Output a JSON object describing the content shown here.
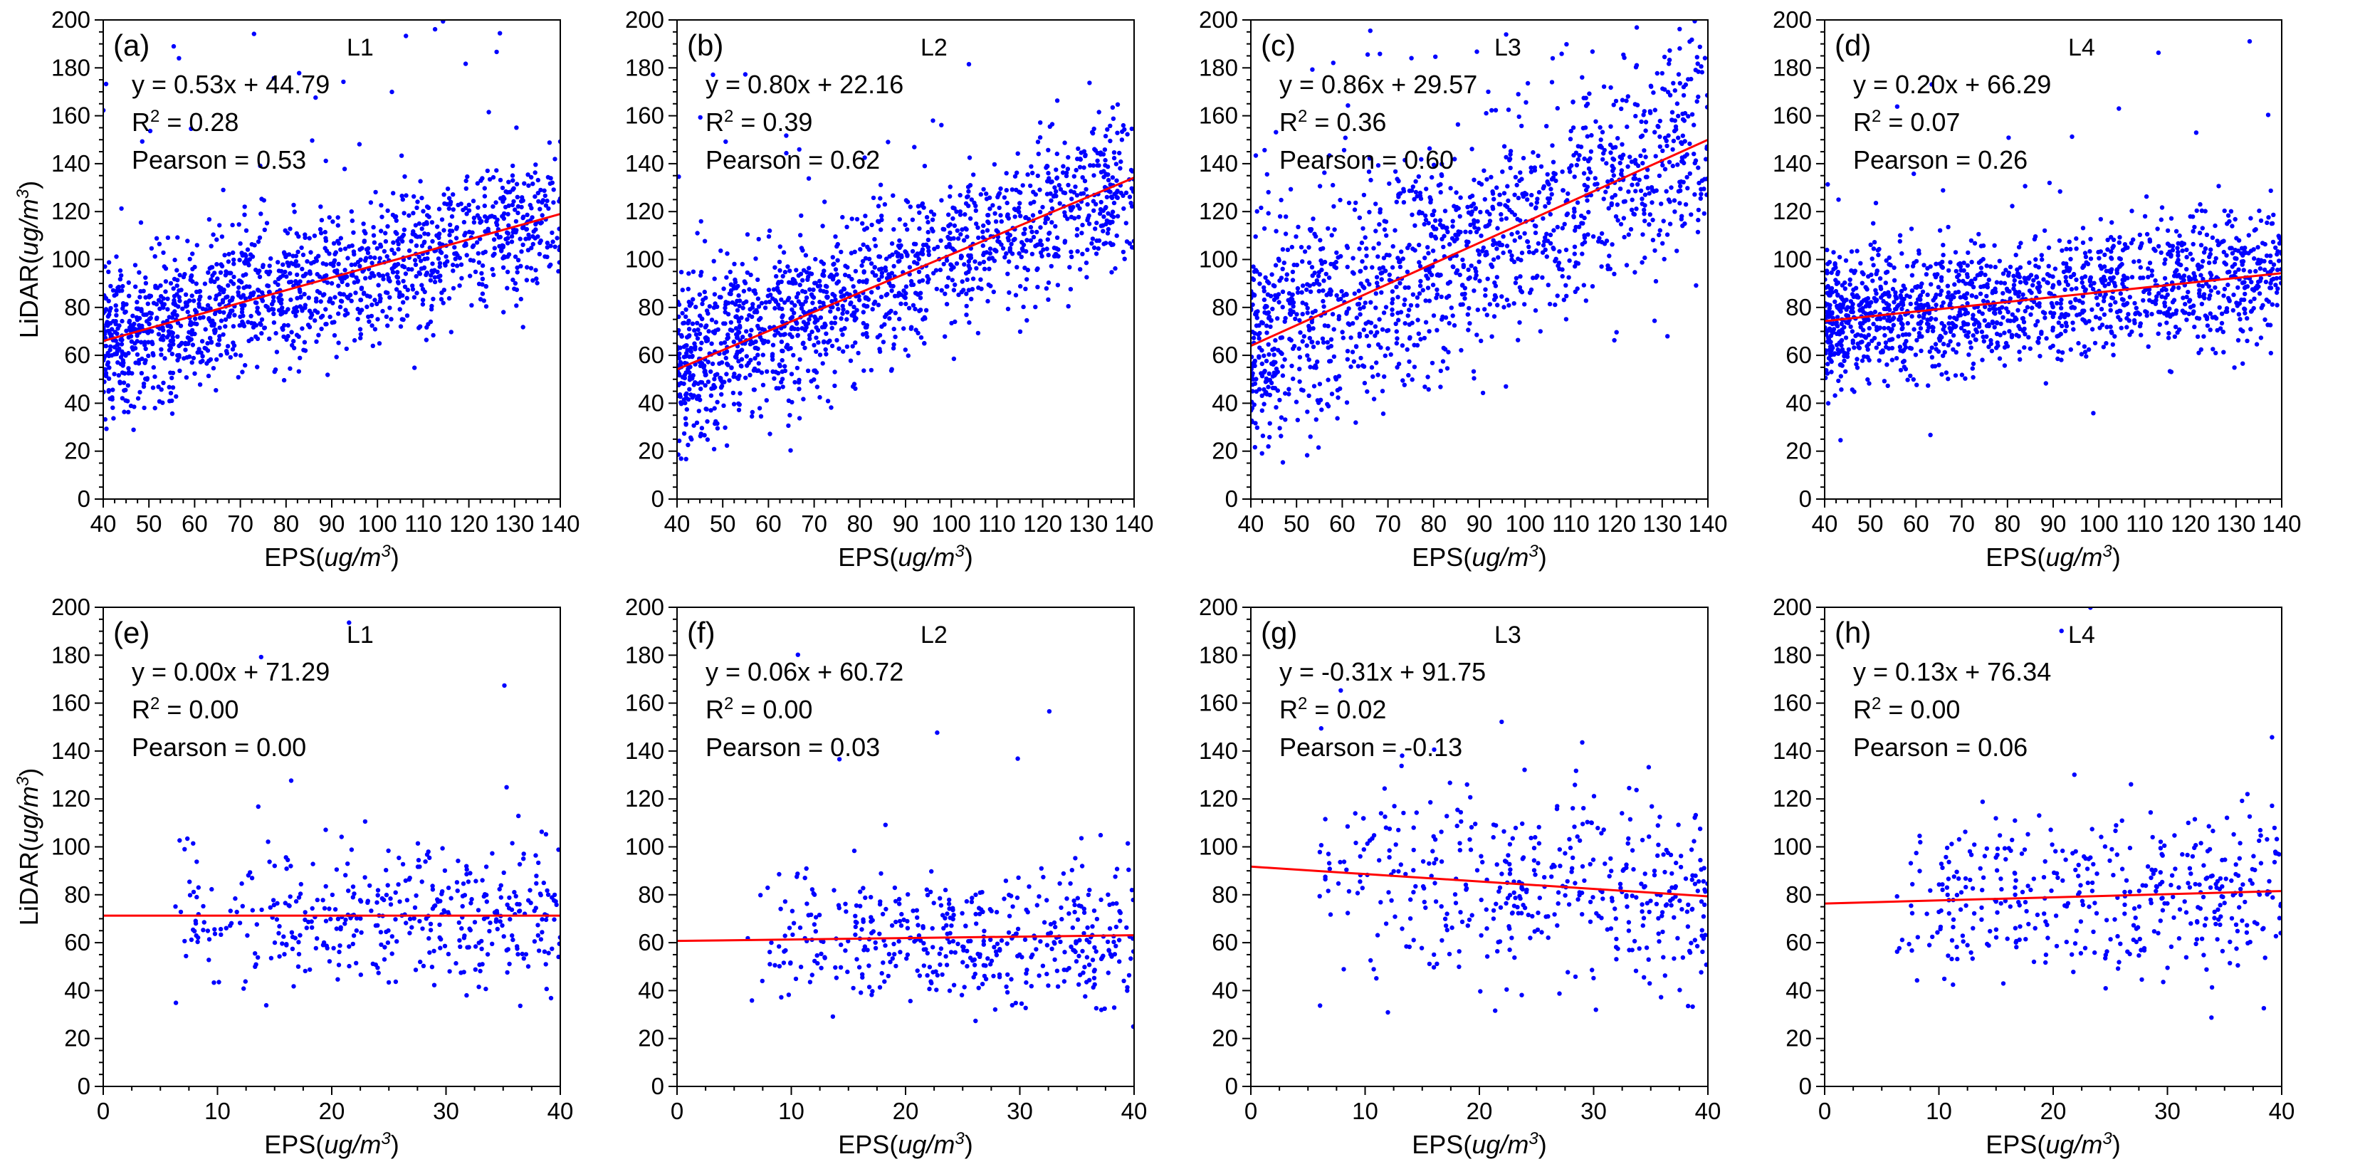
{
  "figure": {
    "background": "#ffffff",
    "point_color": "#0000ff",
    "line_color": "#ff0000"
  },
  "chart_data": [
    {
      "id": "a",
      "type": "scatter",
      "panel_label": "(a)",
      "layer": "L1",
      "equation": "y = 0.53x + 44.79",
      "r2_prefix": "R",
      "r2_value": " = 0.28",
      "pearson": "Pearson = 0.53",
      "xlabel_prefix": "EPS(",
      "xlabel_unit": "ug/m",
      "xlabel_suffix": ")",
      "ylabel_prefix": "LiDAR(",
      "ylabel_unit": "ug/m",
      "ylabel_suffix": ")",
      "xlim": [
        40,
        140
      ],
      "ylim": [
        0,
        200
      ],
      "xticks": [
        40,
        50,
        60,
        70,
        80,
        90,
        100,
        110,
        120,
        130,
        140
      ],
      "yticks": [
        0,
        20,
        40,
        60,
        80,
        100,
        120,
        140,
        160,
        180,
        200
      ],
      "fit": {
        "slope": 0.53,
        "intercept": 44.79
      },
      "scatter_spread": {
        "x_range": [
          40,
          140
        ],
        "n_points": 1500,
        "noise": 15
      }
    },
    {
      "id": "b",
      "type": "scatter",
      "panel_label": "(b)",
      "layer": "L2",
      "equation": "y = 0.80x + 22.16",
      "r2_prefix": "R",
      "r2_value": " = 0.39",
      "pearson": "Pearson = 0.62",
      "xlabel_prefix": "EPS(",
      "xlabel_unit": "ug/m",
      "xlabel_suffix": ")",
      "ylabel_prefix": "",
      "ylabel_unit": "",
      "ylabel_suffix": "",
      "xlim": [
        40,
        140
      ],
      "ylim": [
        0,
        200
      ],
      "xticks": [
        40,
        50,
        60,
        70,
        80,
        90,
        100,
        110,
        120,
        130,
        140
      ],
      "yticks": [
        0,
        20,
        40,
        60,
        80,
        100,
        120,
        140,
        160,
        180,
        200
      ],
      "fit": {
        "slope": 0.8,
        "intercept": 22.16
      },
      "scatter_spread": {
        "x_range": [
          40,
          140
        ],
        "n_points": 1500,
        "noise": 17
      }
    },
    {
      "id": "c",
      "type": "scatter",
      "panel_label": "(c)",
      "layer": "L3",
      "equation": "y = 0.86x + 29.57",
      "r2_prefix": "R",
      "r2_value": " = 0.36",
      "pearson": "Pearson = 0.60",
      "xlabel_prefix": "EPS(",
      "xlabel_unit": "ug/m",
      "xlabel_suffix": ")",
      "ylabel_prefix": "",
      "ylabel_unit": "",
      "ylabel_suffix": "",
      "xlim": [
        40,
        140
      ],
      "ylim": [
        0,
        200
      ],
      "xticks": [
        40,
        50,
        60,
        70,
        80,
        90,
        100,
        110,
        120,
        130,
        140
      ],
      "yticks": [
        0,
        20,
        40,
        60,
        80,
        100,
        120,
        140,
        160,
        180,
        200
      ],
      "fit": {
        "slope": 0.86,
        "intercept": 29.57
      },
      "scatter_spread": {
        "x_range": [
          40,
          140
        ],
        "n_points": 1400,
        "noise": 24
      }
    },
    {
      "id": "d",
      "type": "scatter",
      "panel_label": "(d)",
      "layer": "L4",
      "equation": "y = 0.20x + 66.29",
      "r2_prefix": "R",
      "r2_value": " = 0.07",
      "pearson": "Pearson = 0.26",
      "xlabel_prefix": "EPS(",
      "xlabel_unit": "ug/m",
      "xlabel_suffix": ")",
      "ylabel_prefix": "",
      "ylabel_unit": "",
      "ylabel_suffix": "",
      "xlim": [
        40,
        140
      ],
      "ylim": [
        0,
        200
      ],
      "xticks": [
        40,
        50,
        60,
        70,
        80,
        90,
        100,
        110,
        120,
        130,
        140
      ],
      "yticks": [
        0,
        20,
        40,
        60,
        80,
        100,
        120,
        140,
        160,
        180,
        200
      ],
      "fit": {
        "slope": 0.2,
        "intercept": 66.29
      },
      "scatter_spread": {
        "x_range": [
          40,
          140
        ],
        "n_points": 1500,
        "noise": 14
      }
    },
    {
      "id": "e",
      "type": "scatter",
      "panel_label": "(e)",
      "layer": "L1",
      "equation": "y = 0.00x + 71.29",
      "r2_prefix": "R",
      "r2_value": " = 0.00",
      "pearson": "Pearson = 0.00",
      "xlabel_prefix": "EPS(",
      "xlabel_unit": "ug/m",
      "xlabel_suffix": ")",
      "ylabel_prefix": "LiDAR(",
      "ylabel_unit": "ug/m",
      "ylabel_suffix": ")",
      "xlim": [
        0,
        40
      ],
      "ylim": [
        0,
        200
      ],
      "xticks": [
        0,
        10,
        20,
        30,
        40
      ],
      "yticks": [
        0,
        20,
        40,
        60,
        80,
        100,
        120,
        140,
        160,
        180,
        200
      ],
      "fit": {
        "slope": 0.0,
        "intercept": 71.29
      },
      "scatter_spread": {
        "x_range": [
          6,
          40
        ],
        "n_points": 420,
        "noise": 16
      }
    },
    {
      "id": "f",
      "type": "scatter",
      "panel_label": "(f)",
      "layer": "L2",
      "equation": "y = 0.06x + 60.72",
      "r2_prefix": "R",
      "r2_value": " = 0.00",
      "pearson": "Pearson = 0.03",
      "xlabel_prefix": "EPS(",
      "xlabel_unit": "ug/m",
      "xlabel_suffix": ")",
      "ylabel_prefix": "",
      "ylabel_unit": "",
      "ylabel_suffix": "",
      "xlim": [
        0,
        40
      ],
      "ylim": [
        0,
        200
      ],
      "xticks": [
        0,
        10,
        20,
        30,
        40
      ],
      "yticks": [
        0,
        20,
        40,
        60,
        80,
        100,
        120,
        140,
        160,
        180,
        200
      ],
      "fit": {
        "slope": 0.06,
        "intercept": 60.72
      },
      "scatter_spread": {
        "x_range": [
          6,
          40
        ],
        "n_points": 460,
        "noise": 14
      }
    },
    {
      "id": "g",
      "type": "scatter",
      "panel_label": "(g)",
      "layer": "L3",
      "equation": "y = -0.31x + 91.75",
      "r2_prefix": "R",
      "r2_value": " = 0.02",
      "pearson": "Pearson = -0.13",
      "xlabel_prefix": "EPS(",
      "xlabel_unit": "ug/m",
      "xlabel_suffix": ")",
      "ylabel_prefix": "",
      "ylabel_unit": "",
      "ylabel_suffix": "",
      "xlim": [
        0,
        40
      ],
      "ylim": [
        0,
        200
      ],
      "xticks": [
        0,
        10,
        20,
        30,
        40
      ],
      "yticks": [
        0,
        20,
        40,
        60,
        80,
        100,
        120,
        140,
        160,
        180,
        200
      ],
      "fit": {
        "slope": -0.31,
        "intercept": 91.75
      },
      "scatter_spread": {
        "x_range": [
          6,
          40
        ],
        "n_points": 440,
        "noise": 20
      }
    },
    {
      "id": "h",
      "type": "scatter",
      "panel_label": "(h)",
      "layer": "L4",
      "equation": "y = 0.13x + 76.34",
      "r2_prefix": "R",
      "r2_value": " = 0.00",
      "pearson": "Pearson = 0.06",
      "xlabel_prefix": "EPS(",
      "xlabel_unit": "ug/m",
      "xlabel_suffix": ")",
      "ylabel_prefix": "",
      "ylabel_unit": "",
      "ylabel_suffix": "",
      "xlim": [
        0,
        40
      ],
      "ylim": [
        0,
        200
      ],
      "xticks": [
        0,
        10,
        20,
        30,
        40
      ],
      "yticks": [
        0,
        20,
        40,
        60,
        80,
        100,
        120,
        140,
        160,
        180,
        200
      ],
      "fit": {
        "slope": 0.13,
        "intercept": 76.34
      },
      "scatter_spread": {
        "x_range": [
          6,
          40
        ],
        "n_points": 420,
        "noise": 17
      }
    }
  ]
}
